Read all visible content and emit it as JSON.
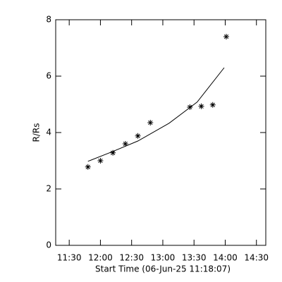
{
  "chart_data": {
    "type": "scatter",
    "x_label": "Start Time (06-Jun-25 11:18:07)",
    "y_label": "R/Rs",
    "xlim": [
      677,
      879
    ],
    "xticks": [
      {
        "value": 690,
        "label": "11:30"
      },
      {
        "value": 720,
        "label": "12:00"
      },
      {
        "value": 750,
        "label": "12:30"
      },
      {
        "value": 780,
        "label": "13:00"
      },
      {
        "value": 810,
        "label": "13:30"
      },
      {
        "value": 840,
        "label": "14:00"
      },
      {
        "value": 870,
        "label": "14:30"
      }
    ],
    "ylim": [
      0,
      8
    ],
    "yticks": [
      0,
      2,
      4,
      6,
      8
    ],
    "color": "#000000",
    "x": [
      708,
      720,
      732,
      744,
      756,
      768,
      806,
      817,
      828,
      841
    ],
    "values": [
      2.78,
      3.0,
      3.28,
      3.6,
      3.88,
      4.35,
      4.9,
      4.93,
      4.98,
      7.4
    ],
    "fit": {
      "x": [
        708,
        732,
        756,
        786,
        813,
        839
      ],
      "values": [
        2.98,
        3.33,
        3.7,
        4.33,
        5.08,
        6.3
      ]
    }
  }
}
